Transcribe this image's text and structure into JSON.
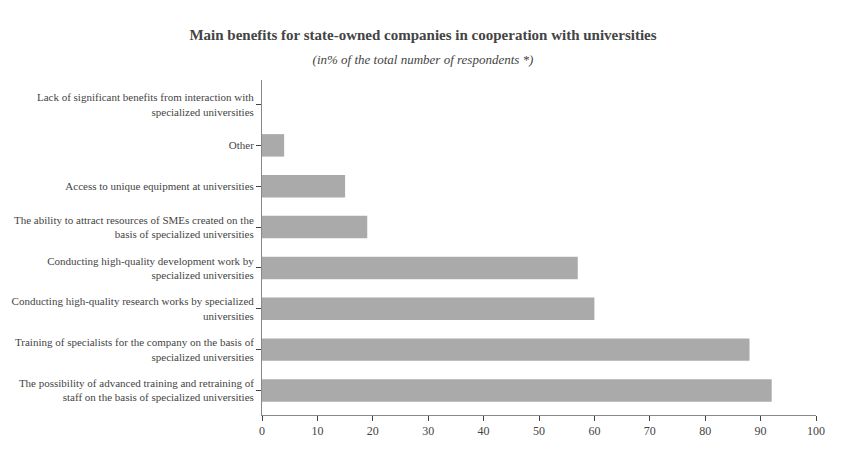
{
  "chart_data": {
    "type": "bar",
    "orientation": "horizontal",
    "title": "Main benefits for state-owned companies in cooperation with universities",
    "subtitle": "(in% of the total number of respondents *)",
    "categories": [
      "The possibility of advanced training and retraining of\nstaff on the basis of specialized universities",
      "Training of specialists for the company on the basis of\nspecialized universities",
      "Conducting high-quality research works by specialized\nuniversities",
      "Conducting high-quality development work by\nspecialized universities",
      "The ability to attract resources of SMEs created on the\nbasis of specialized universities",
      "Access to unique equipment at universities",
      "Other",
      "Lack of significant benefits from interaction with\nspecialized universities"
    ],
    "values": [
      92,
      88,
      60,
      57,
      19,
      15,
      4,
      0
    ],
    "color": "#aaaaaa",
    "xlim": [
      0,
      100
    ],
    "xticks": [
      0,
      10,
      20,
      30,
      40,
      50,
      60,
      70,
      80,
      90,
      100
    ],
    "grid": false
  }
}
